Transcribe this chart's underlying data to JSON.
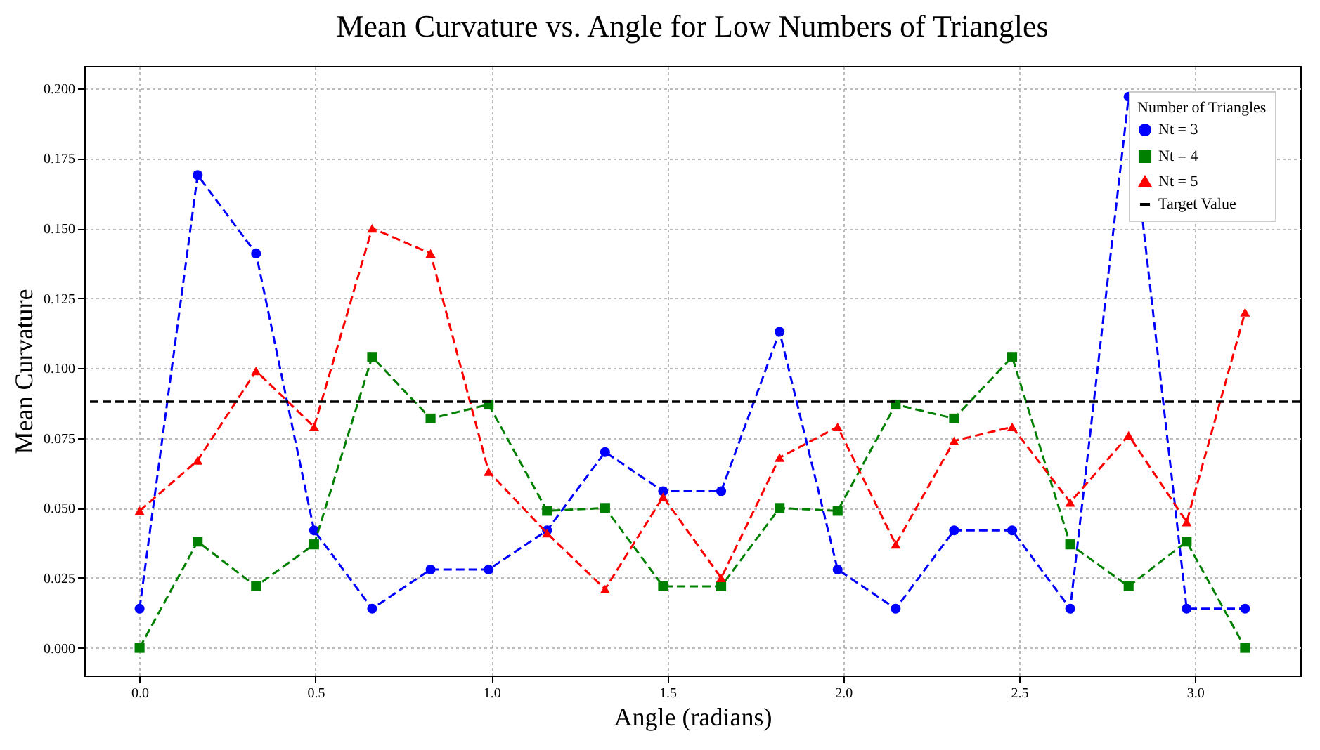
{
  "chart_data": {
    "type": "line",
    "title": "Mean Curvature vs. Angle for Low Numbers of Triangles",
    "xlabel": "Angle (radians)",
    "ylabel": "Mean Curvature",
    "legend_title": "Number of Triangles",
    "x": [
      0,
      0.165,
      0.331,
      0.496,
      0.661,
      0.827,
      0.992,
      1.158,
      1.323,
      1.488,
      1.653,
      1.819,
      1.984,
      2.149,
      2.315,
      2.48,
      2.645,
      2.811,
      2.976,
      3.142
    ],
    "series": [
      {
        "name": "Nt = 3",
        "color": "#0000ff",
        "marker": "circle",
        "values": [
          0.014,
          0.169,
          0.141,
          0.042,
          0.014,
          0.028,
          0.028,
          0.042,
          0.07,
          0.056,
          0.056,
          0.113,
          0.028,
          0.014,
          0.042,
          0.042,
          0.014,
          0.197,
          0.014,
          0.014
        ]
      },
      {
        "name": "Nt = 4",
        "color": "#008000",
        "marker": "square",
        "values": [
          0,
          0.038,
          0.022,
          0.037,
          0.104,
          0.082,
          0.087,
          0.049,
          0.05,
          0.022,
          0.022,
          0.05,
          0.049,
          0.087,
          0.082,
          0.104,
          0.037,
          0.022,
          0.038,
          0
        ]
      },
      {
        "name": "Nt = 5",
        "color": "#ff0000",
        "marker": "triangle",
        "values": [
          0.049,
          0.067,
          0.099,
          0.079,
          0.15,
          0.141,
          0.063,
          0.041,
          0.021,
          0.054,
          0.025,
          0.068,
          0.079,
          0.037,
          0.074,
          0.079,
          0.052,
          0.076,
          0.045,
          0.12
        ]
      }
    ],
    "ref_lines": [
      {
        "axis": "y",
        "value": 0.088,
        "label": "Target Value",
        "color": "#000000",
        "line_style": "dashed"
      }
    ],
    "xlim": [
      -0.157,
      3.299
    ],
    "ylim": [
      -0.0099,
      0.208
    ],
    "xticks": [
      {
        "value": 0,
        "label": "0.0"
      },
      {
        "value": 0.5,
        "label": "0.5"
      },
      {
        "value": 1,
        "label": "1.0"
      },
      {
        "value": 1.5,
        "label": "1.5"
      },
      {
        "value": 2,
        "label": "2.0"
      },
      {
        "value": 2.5,
        "label": "2.5"
      },
      {
        "value": 3,
        "label": "3.0"
      }
    ],
    "yticks": [
      {
        "value": 0,
        "label": "0.000"
      },
      {
        "value": 0.025,
        "label": "0.025"
      },
      {
        "value": 0.05,
        "label": "0.050"
      },
      {
        "value": 0.075,
        "label": "0.075"
      },
      {
        "value": 0.1,
        "label": "0.100"
      },
      {
        "value": 0.125,
        "label": "0.125"
      },
      {
        "value": 0.15,
        "label": "0.150"
      },
      {
        "value": 0.175,
        "label": "0.175"
      },
      {
        "value": 0.2,
        "label": "0.200"
      }
    ],
    "grid": true,
    "legend": "top right",
    "line_style": "dashed"
  }
}
